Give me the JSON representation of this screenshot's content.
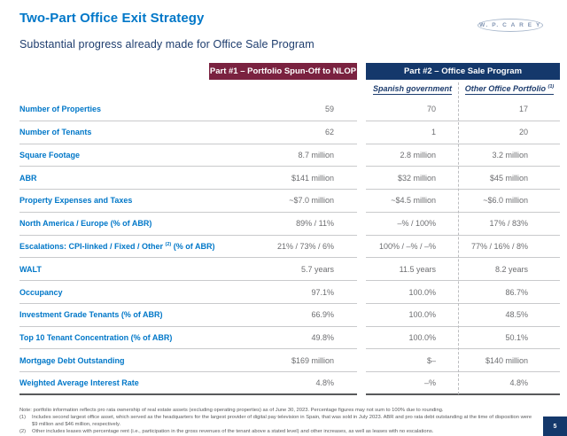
{
  "slide": {
    "title": "Two-Part Office Exit Strategy",
    "subtitle": "Substantial progress already made for Office Sale Program",
    "logo_text": "W. P. C A R E Y",
    "page_number": "5"
  },
  "table": {
    "part1_header": "Part #1 – Portfolio Spun-Off to NLOP",
    "part2_header": "Part #2 – Office Sale Program",
    "subcol_spanish": "Spanish government",
    "subcol_spanish_sup": "",
    "subcol_other": "Other Office Portfolio ",
    "subcol_other_sup": "(1)",
    "rows": [
      {
        "label": "Number of Properties",
        "label_sup": "",
        "label_post": "",
        "part1": "59",
        "spanish": "70",
        "other": "17"
      },
      {
        "label": "Number of Tenants",
        "label_sup": "",
        "label_post": "",
        "part1": "62",
        "spanish": "1",
        "other": "20"
      },
      {
        "label": "Square Footage",
        "label_sup": "",
        "label_post": "",
        "part1": "8.7 million",
        "spanish": "2.8 million",
        "other": "3.2 million"
      },
      {
        "label": "ABR",
        "label_sup": "",
        "label_post": "",
        "part1": "$141 million",
        "spanish": "$32 million",
        "other": "$45 million"
      },
      {
        "label": "Property Expenses and Taxes",
        "label_sup": "",
        "label_post": "",
        "part1": "~$7.0 million",
        "spanish": "~$4.5 million",
        "other": "~$6.0 million"
      },
      {
        "label": "North America / Europe (% of ABR)",
        "label_sup": "",
        "label_post": "",
        "part1": "89% / 11%",
        "spanish": "–% / 100%",
        "other": "17% / 83%"
      },
      {
        "label": "Escalations: CPI-linked / Fixed / Other ",
        "label_sup": "(2)",
        "label_post": " (% of ABR)",
        "part1": "21% / 73% / 6%",
        "spanish": "100% / –% / –%",
        "other": "77% / 16% / 8%"
      },
      {
        "label": "WALT",
        "label_sup": "",
        "label_post": "",
        "part1": "5.7 years",
        "spanish": "11.5 years",
        "other": "8.2 years"
      },
      {
        "label": "Occupancy",
        "label_sup": "",
        "label_post": "",
        "part1": "97.1%",
        "spanish": "100.0%",
        "other": "86.7%"
      },
      {
        "label": "Investment Grade Tenants (% of ABR)",
        "label_sup": "",
        "label_post": "",
        "part1": "66.9%",
        "spanish": "100.0%",
        "other": "48.5%"
      },
      {
        "label": "Top 10 Tenant Concentration (% of ABR)",
        "label_sup": "",
        "label_post": "",
        "part1": "49.8%",
        "spanish": "100.0%",
        "other": "50.1%"
      },
      {
        "label": "Mortgage Debt Outstanding",
        "label_sup": "",
        "label_post": "",
        "part1": "$169 million",
        "spanish": "$–",
        "other": "$140 million"
      },
      {
        "label": "Weighted Average Interest Rate",
        "label_sup": "",
        "label_post": "",
        "part1": "4.8%",
        "spanish": "–%",
        "other": "4.8%"
      }
    ]
  },
  "footnotes": {
    "note": "Note: portfolio information reflects pro rata ownership of real estate assets (excluding operating properties) as of June 30, 2023. Percentage figures may not sum to 100% due to rounding.",
    "fn1_marker": "(1)",
    "fn1_text": "Includes second largest office asset, which served as the headquarters for the largest provider of digital pay television in Spain, that was sold in July 2023. ABR and pro rata debt outstanding at the time of disposition were $9 million and $46 million, respectively.",
    "fn2_marker": "(2)",
    "fn2_text": "Other includes leases with percentage rent (i.e., participation in the gross revenues of the tenant above a stated level) and other increases, as well as leases with no escalations."
  },
  "colors": {
    "brand_blue": "#0077c8",
    "dark_navy": "#1e3d6e",
    "maroon": "#7a2240",
    "navy": "#14386b",
    "value_gray": "#6d6e71",
    "rule_gray": "#c9cacc",
    "rule_dark": "#58595b",
    "dash_gray": "#bcbdc0",
    "fn_gray": "#595a5c",
    "logo_blue": "#8295b3"
  }
}
